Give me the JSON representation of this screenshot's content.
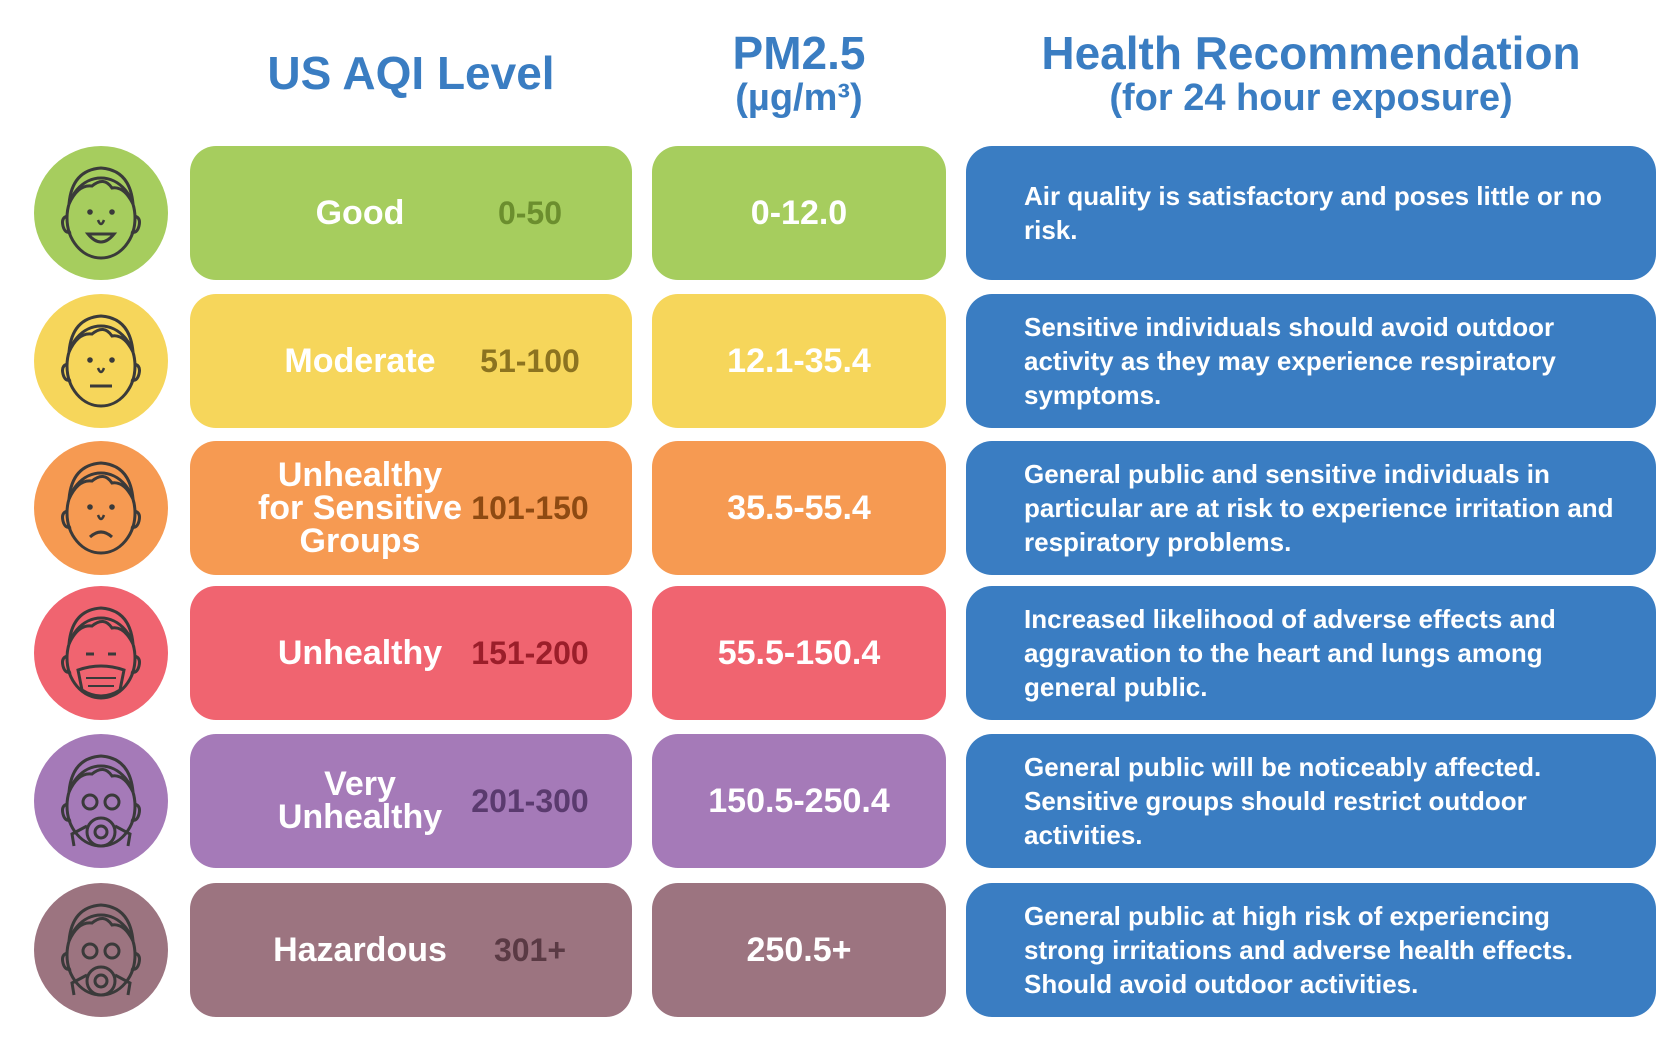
{
  "headers": {
    "aqi": "US AQI Level",
    "pm_line1": "PM2.5",
    "pm_line2": "(µg/m³)",
    "health_line1": "Health Recommendation",
    "health_line2": "(for 24 hour exposure)"
  },
  "rows": [
    {
      "level_lines": [
        "Good"
      ],
      "range": "0-50",
      "pm25": "0-12.0",
      "recommendation": "Air quality is satisfactory and poses little or no risk.",
      "color": "#a6cd5e",
      "range_color": "#6b8e2e",
      "face_icon": "happy-face-icon"
    },
    {
      "level_lines": [
        "Moderate"
      ],
      "range": "51-100",
      "pm25": "12.1-35.4",
      "recommendation": "Sensitive individuals should avoid outdoor activity as they may experience respiratory symptoms.",
      "color": "#f6d65b",
      "range_color": "#8c7320",
      "face_icon": "neutral-face-icon"
    },
    {
      "level_lines": [
        "Unhealthy",
        "for Sensitive",
        "Groups"
      ],
      "range": "101-150",
      "pm25": "35.5-55.4",
      "recommendation": "General public and sensitive individuals in particular are at risk to experience irritation and respiratory problems.",
      "color": "#f69a52",
      "range_color": "#8e4a12",
      "face_icon": "sad-face-icon"
    },
    {
      "level_lines": [
        "Unhealthy"
      ],
      "range": "151-200",
      "pm25": "55.5-150.4",
      "recommendation": "Increased likelihood of adverse effects and aggravation to the heart and lungs among general public.",
      "color": "#f06470",
      "range_color": "#9b1e2a",
      "face_icon": "face-mask-icon"
    },
    {
      "level_lines": [
        "Very",
        "Unhealthy"
      ],
      "range": "201-300",
      "pm25": "150.5-250.4",
      "recommendation": "General public will be noticeably affected. Sensitive groups should restrict outdoor activities.",
      "color": "#a57ab8",
      "range_color": "#5a3a6e",
      "face_icon": "respirator-face-icon"
    },
    {
      "level_lines": [
        "Hazardous"
      ],
      "range": "301+",
      "pm25": "250.5+",
      "recommendation": "General public at high risk of experiencing strong irritations and adverse health effects. Should avoid outdoor activities.",
      "color": "#9c7480",
      "range_color": "#5a3a44",
      "face_icon": "gas-mask-face-icon"
    }
  ]
}
